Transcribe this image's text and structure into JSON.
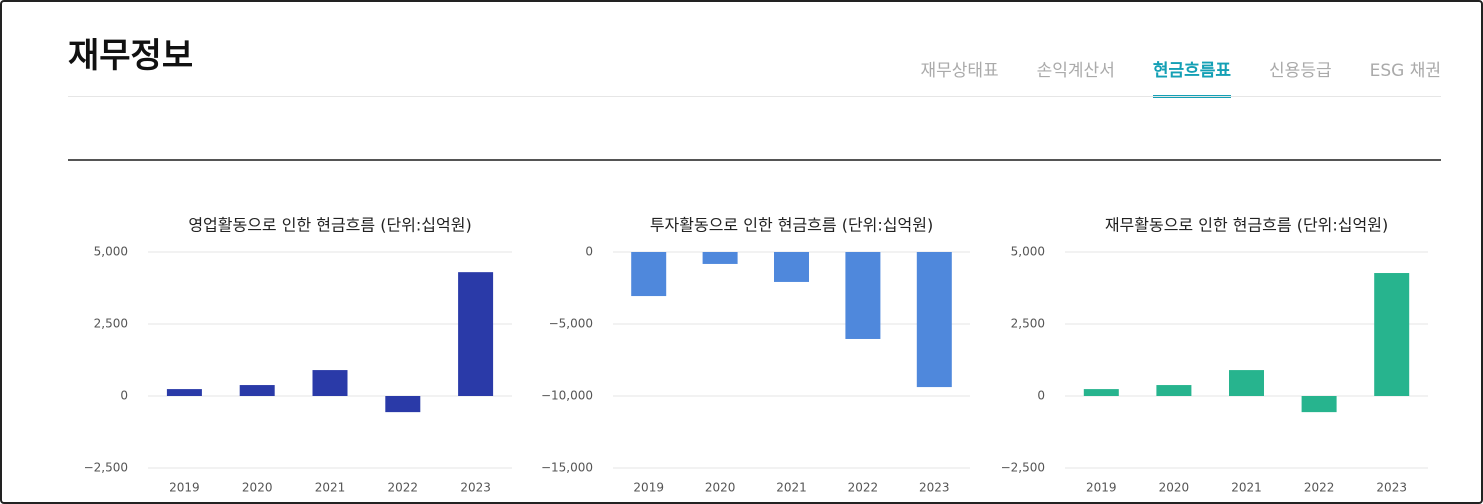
{
  "header": {
    "title": "재무정보",
    "tabs": [
      "재무상태표",
      "손익계산서",
      "현금흐름표",
      "신용등급",
      "ESG 채권"
    ],
    "active_tab": 2
  },
  "chart_data": [
    {
      "type": "bar",
      "title": "영업활동으로 인한 현금흐름 (단위:십억원)",
      "categories": [
        "2019",
        "2020",
        "2021",
        "2022",
        "2023"
      ],
      "values": [
        240,
        380,
        900,
        -560,
        4300
      ],
      "color": "#2a3aa8",
      "ylim": [
        -2500,
        5000
      ],
      "yticks": [
        {
          "value": -2500,
          "label": "−2,500"
        },
        0,
        {
          "value": 2500,
          "label": "2,500"
        },
        {
          "value": 5000,
          "label": "5,000"
        }
      ],
      "grid": true
    },
    {
      "type": "bar",
      "title": "투자활동으로 인한 현금흐름 (단위:십억원)",
      "categories": [
        "2019",
        "2020",
        "2021",
        "2022",
        "2023"
      ],
      "values": [
        -3060,
        -830,
        -2080,
        -6040,
        -9380
      ],
      "color": "#4f88dc",
      "ylim": [
        -15000,
        0
      ],
      "yticks": [
        {
          "value": -15000,
          "label": "−15,000"
        },
        {
          "value": -10000,
          "label": "−10,000"
        },
        {
          "value": -5000,
          "label": "−5,000"
        },
        0
      ],
      "grid": true
    },
    {
      "type": "bar",
      "title": "재무활동으로 인한 현금흐름 (단위:십억원)",
      "categories": [
        "2019",
        "2020",
        "2021",
        "2022",
        "2023"
      ],
      "values": [
        240,
        380,
        900,
        -560,
        4270
      ],
      "color": "#27b48e",
      "ylim": [
        -2500,
        5000
      ],
      "yticks": [
        {
          "value": -2500,
          "label": "−2,500"
        },
        0,
        {
          "value": 2500,
          "label": "2,500"
        },
        {
          "value": 5000,
          "label": "5,000"
        }
      ],
      "grid": true
    }
  ]
}
